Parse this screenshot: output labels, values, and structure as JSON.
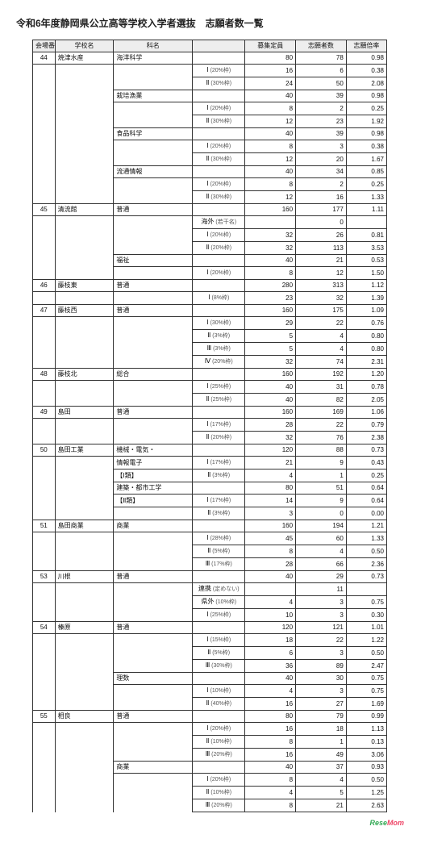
{
  "title": "令和6年度静岡県公立高等学校入学者選抜　志願者数一覧",
  "headers": {
    "no": "会場番号",
    "school": "学校名",
    "dept": "科名",
    "sub": "",
    "capacity": "募集定員",
    "applicants": "志願者数",
    "rate": "志願倍率"
  },
  "footer": {
    "brand1": "Rese",
    "brand2": "Mom"
  },
  "rows": [
    {
      "no": "44",
      "school": "焼津水産",
      "dept": "海洋科学",
      "sub": "",
      "cap": "80",
      "app": "78",
      "rate": "0.98",
      "nb": true,
      "sb": true,
      "db": true
    },
    {
      "sub": "Ⅰ",
      "subnote": "(20%枠)",
      "cap": "16",
      "app": "6",
      "rate": "0.38"
    },
    {
      "sub": "Ⅱ",
      "subnote": "(30%枠)",
      "cap": "24",
      "app": "50",
      "rate": "2.08"
    },
    {
      "dept": "栽培漁業",
      "sub": "",
      "cap": "40",
      "app": "39",
      "rate": "0.98",
      "db": true
    },
    {
      "sub": "Ⅰ",
      "subnote": "(20%枠)",
      "cap": "8",
      "app": "2",
      "rate": "0.25"
    },
    {
      "sub": "Ⅱ",
      "subnote": "(30%枠)",
      "cap": "12",
      "app": "23",
      "rate": "1.92"
    },
    {
      "dept": "食品科学",
      "sub": "",
      "cap": "40",
      "app": "39",
      "rate": "0.98",
      "db": true
    },
    {
      "sub": "Ⅰ",
      "subnote": "(20%枠)",
      "cap": "8",
      "app": "3",
      "rate": "0.38"
    },
    {
      "sub": "Ⅱ",
      "subnote": "(30%枠)",
      "cap": "12",
      "app": "20",
      "rate": "1.67"
    },
    {
      "dept": "流通情報",
      "sub": "",
      "cap": "40",
      "app": "34",
      "rate": "0.85",
      "db": true
    },
    {
      "sub": "Ⅰ",
      "subnote": "(20%枠)",
      "cap": "8",
      "app": "2",
      "rate": "0.25"
    },
    {
      "sub": "Ⅱ",
      "subnote": "(30%枠)",
      "cap": "12",
      "app": "16",
      "rate": "1.33"
    },
    {
      "no": "45",
      "school": "清流館",
      "dept": "普通",
      "sub": "",
      "cap": "160",
      "app": "177",
      "rate": "1.11",
      "nb": true,
      "sb": true,
      "db": true
    },
    {
      "sub": "海外",
      "subnote": "(若干名)",
      "cap": "",
      "app": "0",
      "rate": ""
    },
    {
      "sub": "Ⅰ",
      "subnote": "(20%枠)",
      "cap": "32",
      "app": "26",
      "rate": "0.81"
    },
    {
      "sub": "Ⅱ",
      "subnote": "(20%枠)",
      "cap": "32",
      "app": "113",
      "rate": "3.53"
    },
    {
      "dept": "福祉",
      "sub": "",
      "cap": "40",
      "app": "21",
      "rate": "0.53",
      "db": true
    },
    {
      "sub": "Ⅰ",
      "subnote": "(20%枠)",
      "cap": "8",
      "app": "12",
      "rate": "1.50"
    },
    {
      "no": "46",
      "school": "藤枝東",
      "dept": "普通",
      "sub": "",
      "cap": "280",
      "app": "313",
      "rate": "1.12",
      "nb": true,
      "sb": true,
      "db": true
    },
    {
      "sub": "Ⅰ",
      "subnote": "(8%枠)",
      "cap": "23",
      "app": "32",
      "rate": "1.39"
    },
    {
      "no": "47",
      "school": "藤枝西",
      "dept": "普通",
      "sub": "",
      "cap": "160",
      "app": "175",
      "rate": "1.09",
      "nb": true,
      "sb": true,
      "db": true
    },
    {
      "sub": "Ⅰ",
      "subnote": "(30%枠)",
      "cap": "29",
      "app": "22",
      "rate": "0.76"
    },
    {
      "sub": "Ⅱ",
      "subnote": "(3%枠)",
      "cap": "5",
      "app": "4",
      "rate": "0.80"
    },
    {
      "sub": "Ⅲ",
      "subnote": "(3%枠)",
      "cap": "5",
      "app": "4",
      "rate": "0.80"
    },
    {
      "sub": "Ⅳ",
      "subnote": "(20%枠)",
      "cap": "32",
      "app": "74",
      "rate": "2.31"
    },
    {
      "no": "48",
      "school": "藤枝北",
      "dept": "総合",
      "sub": "",
      "cap": "160",
      "app": "192",
      "rate": "1.20",
      "nb": true,
      "sb": true,
      "db": true
    },
    {
      "sub": "Ⅰ",
      "subnote": "(25%枠)",
      "cap": "40",
      "app": "31",
      "rate": "0.78"
    },
    {
      "sub": "Ⅱ",
      "subnote": "(25%枠)",
      "cap": "40",
      "app": "82",
      "rate": "2.05"
    },
    {
      "no": "49",
      "school": "島田",
      "dept": "普通",
      "sub": "",
      "cap": "160",
      "app": "169",
      "rate": "1.06",
      "nb": true,
      "sb": true,
      "db": true
    },
    {
      "sub": "Ⅰ",
      "subnote": "(17%枠)",
      "cap": "28",
      "app": "22",
      "rate": "0.79"
    },
    {
      "sub": "Ⅱ",
      "subnote": "(20%枠)",
      "cap": "32",
      "app": "76",
      "rate": "2.38"
    },
    {
      "no": "50",
      "school": "島田工業",
      "dept": "機械・電気・",
      "sub": "",
      "cap": "120",
      "app": "88",
      "rate": "0.73",
      "nb": true,
      "sb": true,
      "db": true
    },
    {
      "dept": "情報電子",
      "sub": "Ⅰ",
      "subnote": "(17%枠)",
      "cap": "21",
      "app": "9",
      "rate": "0.43"
    },
    {
      "dept": "【Ⅰ類】",
      "sub": "Ⅱ",
      "subnote": "(3%枠)",
      "cap": "4",
      "app": "1",
      "rate": "0.25"
    },
    {
      "dept": "建築・都市工学",
      "sub": "",
      "cap": "80",
      "app": "51",
      "rate": "0.64",
      "db": true
    },
    {
      "dept": "【Ⅱ類】",
      "sub": "Ⅰ",
      "subnote": "(17%枠)",
      "cap": "14",
      "app": "9",
      "rate": "0.64"
    },
    {
      "sub": "Ⅱ",
      "subnote": "(3%枠)",
      "cap": "3",
      "app": "0",
      "rate": "0.00"
    },
    {
      "no": "51",
      "school": "島田商業",
      "dept": "商業",
      "sub": "",
      "cap": "160",
      "app": "194",
      "rate": "1.21",
      "nb": true,
      "sb": true,
      "db": true
    },
    {
      "sub": "Ⅰ",
      "subnote": "(28%枠)",
      "cap": "45",
      "app": "60",
      "rate": "1.33"
    },
    {
      "sub": "Ⅱ",
      "subnote": "(5%枠)",
      "cap": "8",
      "app": "4",
      "rate": "0.50"
    },
    {
      "sub": "Ⅲ",
      "subnote": "(17%枠)",
      "cap": "28",
      "app": "66",
      "rate": "2.36"
    },
    {
      "no": "53",
      "school": "川根",
      "dept": "普通",
      "sub": "",
      "cap": "40",
      "app": "29",
      "rate": "0.73",
      "nb": true,
      "sb": true,
      "db": true
    },
    {
      "sub": "連携",
      "subnote": "(定めない)",
      "cap": "",
      "app": "11",
      "rate": ""
    },
    {
      "sub": "県外",
      "subnote": "(10%枠)",
      "cap": "4",
      "app": "3",
      "rate": "0.75"
    },
    {
      "sub": "Ⅰ",
      "subnote": "(25%枠)",
      "cap": "10",
      "app": "3",
      "rate": "0.30"
    },
    {
      "no": "54",
      "school": "榛原",
      "dept": "普通",
      "sub": "",
      "cap": "120",
      "app": "121",
      "rate": "1.01",
      "nb": true,
      "sb": true,
      "db": true
    },
    {
      "sub": "Ⅰ",
      "subnote": "(15%枠)",
      "cap": "18",
      "app": "22",
      "rate": "1.22"
    },
    {
      "sub": "Ⅱ",
      "subnote": "(5%枠)",
      "cap": "6",
      "app": "3",
      "rate": "0.50"
    },
    {
      "sub": "Ⅲ",
      "subnote": "(30%枠)",
      "cap": "36",
      "app": "89",
      "rate": "2.47"
    },
    {
      "dept": "理数",
      "sub": "",
      "cap": "40",
      "app": "30",
      "rate": "0.75",
      "db": true
    },
    {
      "sub": "Ⅰ",
      "subnote": "(10%枠)",
      "cap": "4",
      "app": "3",
      "rate": "0.75"
    },
    {
      "sub": "Ⅱ",
      "subnote": "(40%枠)",
      "cap": "16",
      "app": "27",
      "rate": "1.69"
    },
    {
      "no": "55",
      "school": "相良",
      "dept": "普通",
      "sub": "",
      "cap": "80",
      "app": "79",
      "rate": "0.99",
      "nb": true,
      "sb": true,
      "db": true
    },
    {
      "sub": "Ⅰ",
      "subnote": "(20%枠)",
      "cap": "16",
      "app": "18",
      "rate": "1.13"
    },
    {
      "sub": "Ⅱ",
      "subnote": "(10%枠)",
      "cap": "8",
      "app": "1",
      "rate": "0.13"
    },
    {
      "sub": "Ⅲ",
      "subnote": "(20%枠)",
      "cap": "16",
      "app": "49",
      "rate": "3.06"
    },
    {
      "dept": "商業",
      "sub": "",
      "cap": "40",
      "app": "37",
      "rate": "0.93",
      "db": true
    },
    {
      "sub": "Ⅰ",
      "subnote": "(20%枠)",
      "cap": "8",
      "app": "4",
      "rate": "0.50"
    },
    {
      "sub": "Ⅱ",
      "subnote": "(10%枠)",
      "cap": "4",
      "app": "5",
      "rate": "1.25"
    },
    {
      "sub": "Ⅲ",
      "subnote": "(20%枠)",
      "cap": "8",
      "app": "21",
      "rate": "2.63"
    }
  ]
}
